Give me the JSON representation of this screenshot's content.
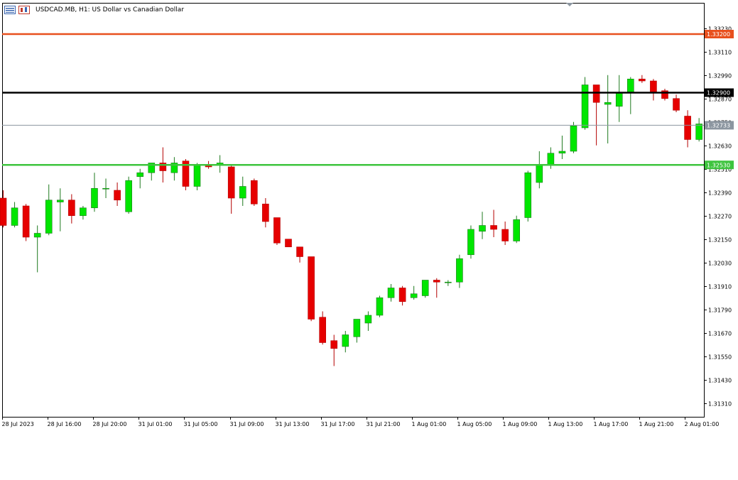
{
  "header": {
    "title": "USDCAD.MB, H1:  US Dollar vs Canadian Dollar"
  },
  "chart_data": {
    "type": "candlestick",
    "symbol": "USDCAD.MB",
    "timeframe": "H1",
    "ylim": [
      1.3124,
      1.3336
    ],
    "y_ticks": [
      "1.33230",
      "1.33110",
      "1.32990",
      "1.32870",
      "1.32750",
      "1.32630",
      "1.32510",
      "1.32390",
      "1.32270",
      "1.32150",
      "1.32030",
      "1.31910",
      "1.31790",
      "1.31670",
      "1.31550",
      "1.31430",
      "1.31310"
    ],
    "x_tick_labels": [
      "28 Jul 2023",
      "28 Jul 16:00",
      "28 Jul 20:00",
      "31 Jul 01:00",
      "31 Jul 05:00",
      "31 Jul 09:00",
      "31 Jul 13:00",
      "31 Jul 17:00",
      "31 Jul 21:00",
      "1 Aug 01:00",
      "1 Aug 05:00",
      "1 Aug 09:00",
      "1 Aug 13:00",
      "1 Aug 17:00",
      "1 Aug 21:00",
      "2 Aug 01:00"
    ],
    "horizontal_lines": [
      {
        "label": "1.33200",
        "value": 1.332,
        "color": "#e8501e"
      },
      {
        "label": "1.32900",
        "value": 1.329,
        "color": "#000000"
      },
      {
        "label": "1.32733",
        "value": 1.32733,
        "color": "#8c96a0"
      },
      {
        "label": "1.32530",
        "value": 1.3253,
        "color": "#3ec43e"
      }
    ],
    "colors": {
      "bull": "#00e600",
      "bear": "#e60000",
      "wick_bull": "#1e7a1e",
      "wick_bear": "#b40000",
      "grid_border": "#000000"
    },
    "candles": [
      {
        "o": 1.3236,
        "h": 1.324,
        "l": 1.3221,
        "c": 1.3222
      },
      {
        "o": 1.3222,
        "h": 1.3234,
        "l": 1.3221,
        "c": 1.3231
      },
      {
        "o": 1.3232,
        "h": 1.3233,
        "l": 1.3214,
        "c": 1.3216
      },
      {
        "o": 1.3216,
        "h": 1.3222,
        "l": 1.3198,
        "c": 1.3218
      },
      {
        "o": 1.3218,
        "h": 1.3243,
        "l": 1.3217,
        "c": 1.3235
      },
      {
        "o": 1.3234,
        "h": 1.3241,
        "l": 1.3219,
        "c": 1.3235
      },
      {
        "o": 1.3235,
        "h": 1.3238,
        "l": 1.3223,
        "c": 1.3227
      },
      {
        "o": 1.3227,
        "h": 1.3232,
        "l": 1.3225,
        "c": 1.3231
      },
      {
        "o": 1.3231,
        "h": 1.3249,
        "l": 1.3229,
        "c": 1.3241
      },
      {
        "o": 1.3241,
        "h": 1.3246,
        "l": 1.3236,
        "c": 1.3241
      },
      {
        "o": 1.324,
        "h": 1.3244,
        "l": 1.3232,
        "c": 1.3235
      },
      {
        "o": 1.3229,
        "h": 1.3247,
        "l": 1.3228,
        "c": 1.3245
      },
      {
        "o": 1.3247,
        "h": 1.3251,
        "l": 1.3241,
        "c": 1.3249
      },
      {
        "o": 1.3249,
        "h": 1.3254,
        "l": 1.3245,
        "c": 1.3254
      },
      {
        "o": 1.3254,
        "h": 1.3262,
        "l": 1.3244,
        "c": 1.325
      },
      {
        "o": 1.3249,
        "h": 1.3257,
        "l": 1.3245,
        "c": 1.3254
      },
      {
        "o": 1.3255,
        "h": 1.3256,
        "l": 1.324,
        "c": 1.3242
      },
      {
        "o": 1.3242,
        "h": 1.3254,
        "l": 1.324,
        "c": 1.3253
      },
      {
        "o": 1.3253,
        "h": 1.3255,
        "l": 1.3251,
        "c": 1.3252
      },
      {
        "o": 1.3253,
        "h": 1.3258,
        "l": 1.3249,
        "c": 1.3254
      },
      {
        "o": 1.3252,
        "h": 1.3253,
        "l": 1.3228,
        "c": 1.3236
      },
      {
        "o": 1.3236,
        "h": 1.3247,
        "l": 1.3232,
        "c": 1.3242
      },
      {
        "o": 1.3245,
        "h": 1.3246,
        "l": 1.3232,
        "c": 1.3233
      },
      {
        "o": 1.3233,
        "h": 1.3236,
        "l": 1.3221,
        "c": 1.3224
      },
      {
        "o": 1.3226,
        "h": 1.3226,
        "l": 1.3212,
        "c": 1.3213
      },
      {
        "o": 1.3215,
        "h": 1.3215,
        "l": 1.3211,
        "c": 1.3211
      },
      {
        "o": 1.3211,
        "h": 1.3211,
        "l": 1.3203,
        "c": 1.3206
      },
      {
        "o": 1.3206,
        "h": 1.3206,
        "l": 1.3173,
        "c": 1.3174
      },
      {
        "o": 1.3175,
        "h": 1.3178,
        "l": 1.3161,
        "c": 1.3162
      },
      {
        "o": 1.3163,
        "h": 1.3166,
        "l": 1.315,
        "c": 1.3159
      },
      {
        "o": 1.316,
        "h": 1.3168,
        "l": 1.3157,
        "c": 1.3166
      },
      {
        "o": 1.3165,
        "h": 1.3174,
        "l": 1.3162,
        "c": 1.3174
      },
      {
        "o": 1.3172,
        "h": 1.3178,
        "l": 1.3168,
        "c": 1.3176
      },
      {
        "o": 1.3176,
        "h": 1.3186,
        "l": 1.3175,
        "c": 1.3185
      },
      {
        "o": 1.3185,
        "h": 1.3192,
        "l": 1.3183,
        "c": 1.319
      },
      {
        "o": 1.319,
        "h": 1.3191,
        "l": 1.3181,
        "c": 1.3183
      },
      {
        "o": 1.3185,
        "h": 1.3191,
        "l": 1.3184,
        "c": 1.3187
      },
      {
        "o": 1.3186,
        "h": 1.3194,
        "l": 1.3185,
        "c": 1.3194
      },
      {
        "o": 1.3194,
        "h": 1.3195,
        "l": 1.3185,
        "c": 1.3193
      },
      {
        "o": 1.3193,
        "h": 1.3194,
        "l": 1.3191,
        "c": 1.3193
      },
      {
        "o": 1.3193,
        "h": 1.3207,
        "l": 1.319,
        "c": 1.3205
      },
      {
        "o": 1.3207,
        "h": 1.3222,
        "l": 1.3205,
        "c": 1.322
      },
      {
        "o": 1.3219,
        "h": 1.3229,
        "l": 1.3215,
        "c": 1.3222
      },
      {
        "o": 1.3222,
        "h": 1.323,
        "l": 1.3216,
        "c": 1.322
      },
      {
        "o": 1.322,
        "h": 1.3224,
        "l": 1.3212,
        "c": 1.3214
      },
      {
        "o": 1.3214,
        "h": 1.3227,
        "l": 1.3213,
        "c": 1.3225
      },
      {
        "o": 1.3226,
        "h": 1.325,
        "l": 1.3224,
        "c": 1.3249
      },
      {
        "o": 1.3244,
        "h": 1.326,
        "l": 1.3241,
        "c": 1.3253
      },
      {
        "o": 1.3253,
        "h": 1.3262,
        "l": 1.3251,
        "c": 1.3259
      },
      {
        "o": 1.3259,
        "h": 1.3268,
        "l": 1.3256,
        "c": 1.326
      },
      {
        "o": 1.326,
        "h": 1.3275,
        "l": 1.3259,
        "c": 1.3273
      },
      {
        "o": 1.3272,
        "h": 1.3298,
        "l": 1.3271,
        "c": 1.3294
      },
      {
        "o": 1.3294,
        "h": 1.3294,
        "l": 1.3263,
        "c": 1.3285
      },
      {
        "o": 1.3284,
        "h": 1.3299,
        "l": 1.3264,
        "c": 1.3285
      },
      {
        "o": 1.3283,
        "h": 1.3299,
        "l": 1.3275,
        "c": 1.329
      },
      {
        "o": 1.329,
        "h": 1.3298,
        "l": 1.3279,
        "c": 1.3297
      },
      {
        "o": 1.3297,
        "h": 1.3299,
        "l": 1.3295,
        "c": 1.3296
      },
      {
        "o": 1.3296,
        "h": 1.3297,
        "l": 1.3286,
        "c": 1.329
      },
      {
        "o": 1.3291,
        "h": 1.3292,
        "l": 1.3286,
        "c": 1.3287
      },
      {
        "o": 1.3287,
        "h": 1.3289,
        "l": 1.328,
        "c": 1.3281
      },
      {
        "o": 1.3278,
        "h": 1.3281,
        "l": 1.3262,
        "c": 1.3266
      },
      {
        "o": 1.3266,
        "h": 1.3277,
        "l": 1.3265,
        "c": 1.3274
      }
    ]
  }
}
